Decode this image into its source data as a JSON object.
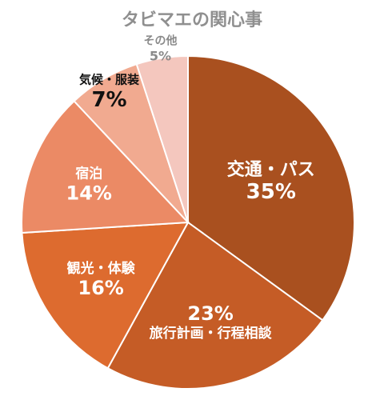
{
  "chart_data": {
    "type": "pie",
    "title": "タビマエの関心事",
    "slices": [
      {
        "label": "交通・パス",
        "value": 35,
        "value_label": "35%",
        "color": "#a9501f",
        "label_color": "#ffffff"
      },
      {
        "label": "旅行計画・行程相談",
        "value": 23,
        "value_label": "23%",
        "color": "#c55c26",
        "label_color": "#ffffff"
      },
      {
        "label": "観光・体験",
        "value": 16,
        "value_label": "16%",
        "color": "#dd6b2f",
        "label_color": "#ffffff"
      },
      {
        "label": "宿泊",
        "value": 14,
        "value_label": "14%",
        "color": "#eb8a65",
        "label_color": "#ffffff"
      },
      {
        "label": "気候・服装",
        "value": 7,
        "value_label": "7%",
        "color": "#f1aa90",
        "label_color": "#111111"
      },
      {
        "label": "その他",
        "value": 5,
        "value_label": "5%",
        "color": "#f4c7be",
        "label_color": "#8a8a8a"
      }
    ],
    "start_angle_deg": 0,
    "direction": "clockwise",
    "legend": "none"
  }
}
